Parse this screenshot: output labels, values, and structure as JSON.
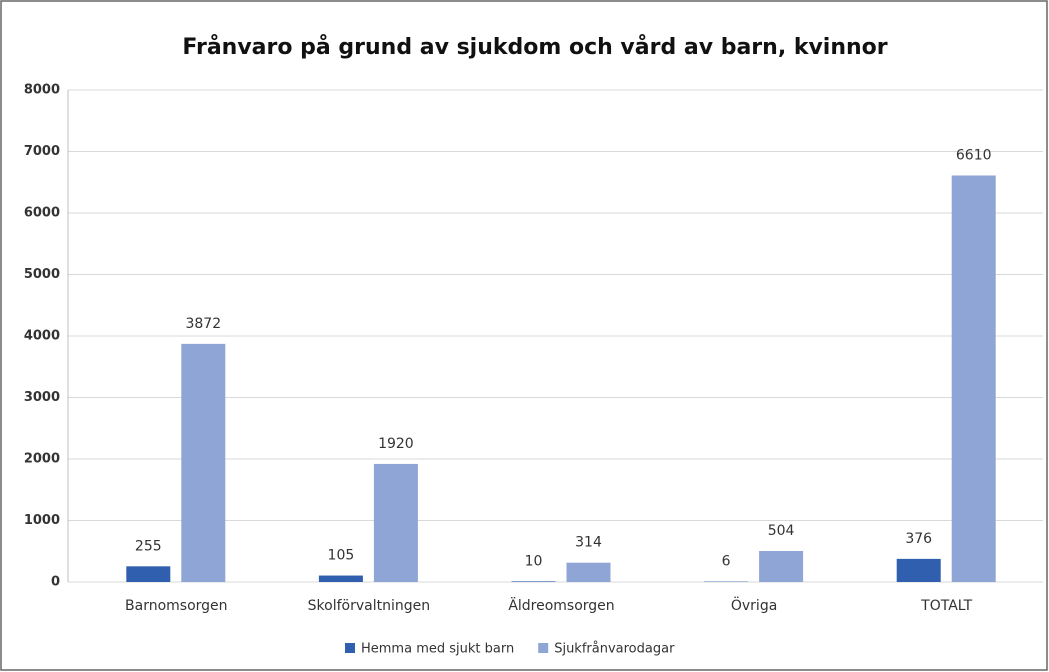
{
  "chart_data": {
    "type": "bar",
    "title": "Frånvaro på grund av sjukdom och vård av barn, kvinnor",
    "categories": [
      "Barnomsorgen",
      "Skolförvaltningen",
      "Äldreomsorgen",
      "Övriga",
      "TOTALT"
    ],
    "series": [
      {
        "name": "Hemma med sjukt barn",
        "color": "#2f5fae",
        "values": [
          255,
          105,
          10,
          6,
          376
        ]
      },
      {
        "name": "Sjukfrånvarodagar",
        "color": "#8fa5d5",
        "values": [
          3872,
          1920,
          314,
          504,
          6610
        ]
      }
    ],
    "ylim": [
      0,
      8000
    ],
    "yticks": [
      0,
      1000,
      2000,
      3000,
      4000,
      5000,
      6000,
      7000,
      8000
    ],
    "grid": true,
    "legend": "bottom"
  }
}
